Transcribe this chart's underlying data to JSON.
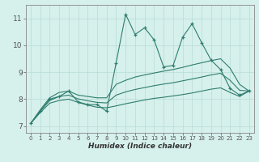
{
  "title": "",
  "xlabel": "Humidex (Indice chaleur)",
  "x_values": [
    0,
    1,
    2,
    3,
    4,
    5,
    6,
    7,
    8,
    9,
    10,
    11,
    12,
    13,
    14,
    15,
    16,
    17,
    18,
    19,
    20,
    21,
    22,
    23
  ],
  "main_line": [
    7.1,
    7.55,
    8.0,
    8.1,
    8.3,
    7.9,
    7.8,
    7.8,
    7.55,
    9.35,
    11.15,
    10.4,
    10.65,
    10.2,
    9.2,
    9.25,
    10.3,
    10.8,
    10.1,
    9.45,
    9.1,
    8.4,
    8.15,
    8.3
  ],
  "upper_line": [
    7.1,
    7.6,
    8.05,
    8.25,
    8.3,
    8.15,
    8.1,
    8.05,
    8.05,
    8.55,
    8.7,
    8.82,
    8.9,
    8.97,
    9.04,
    9.1,
    9.18,
    9.27,
    9.35,
    9.43,
    9.5,
    9.15,
    8.55,
    8.3
  ],
  "lower_line": [
    7.1,
    7.5,
    7.85,
    7.95,
    8.0,
    7.88,
    7.78,
    7.7,
    7.68,
    7.75,
    7.83,
    7.9,
    7.97,
    8.03,
    8.07,
    8.12,
    8.17,
    8.23,
    8.3,
    8.37,
    8.42,
    8.25,
    8.1,
    8.3
  ],
  "mid_line": [
    7.1,
    7.55,
    7.95,
    8.1,
    8.15,
    8.01,
    7.94,
    7.88,
    7.86,
    8.15,
    8.27,
    8.36,
    8.43,
    8.5,
    8.56,
    8.61,
    8.68,
    8.75,
    8.82,
    8.9,
    8.96,
    8.7,
    8.33,
    8.3
  ],
  "line_color": "#2e7d6e",
  "bg_color": "#d6f0ec",
  "grid_color": "#b8dbd6",
  "ylim": [
    6.75,
    11.5
  ],
  "xlim": [
    -0.5,
    23.5
  ],
  "yticks": [
    7,
    8,
    9,
    10,
    11
  ],
  "xticks": [
    0,
    1,
    2,
    3,
    4,
    5,
    6,
    7,
    8,
    9,
    10,
    11,
    12,
    13,
    14,
    15,
    16,
    17,
    18,
    19,
    20,
    21,
    22,
    23
  ]
}
